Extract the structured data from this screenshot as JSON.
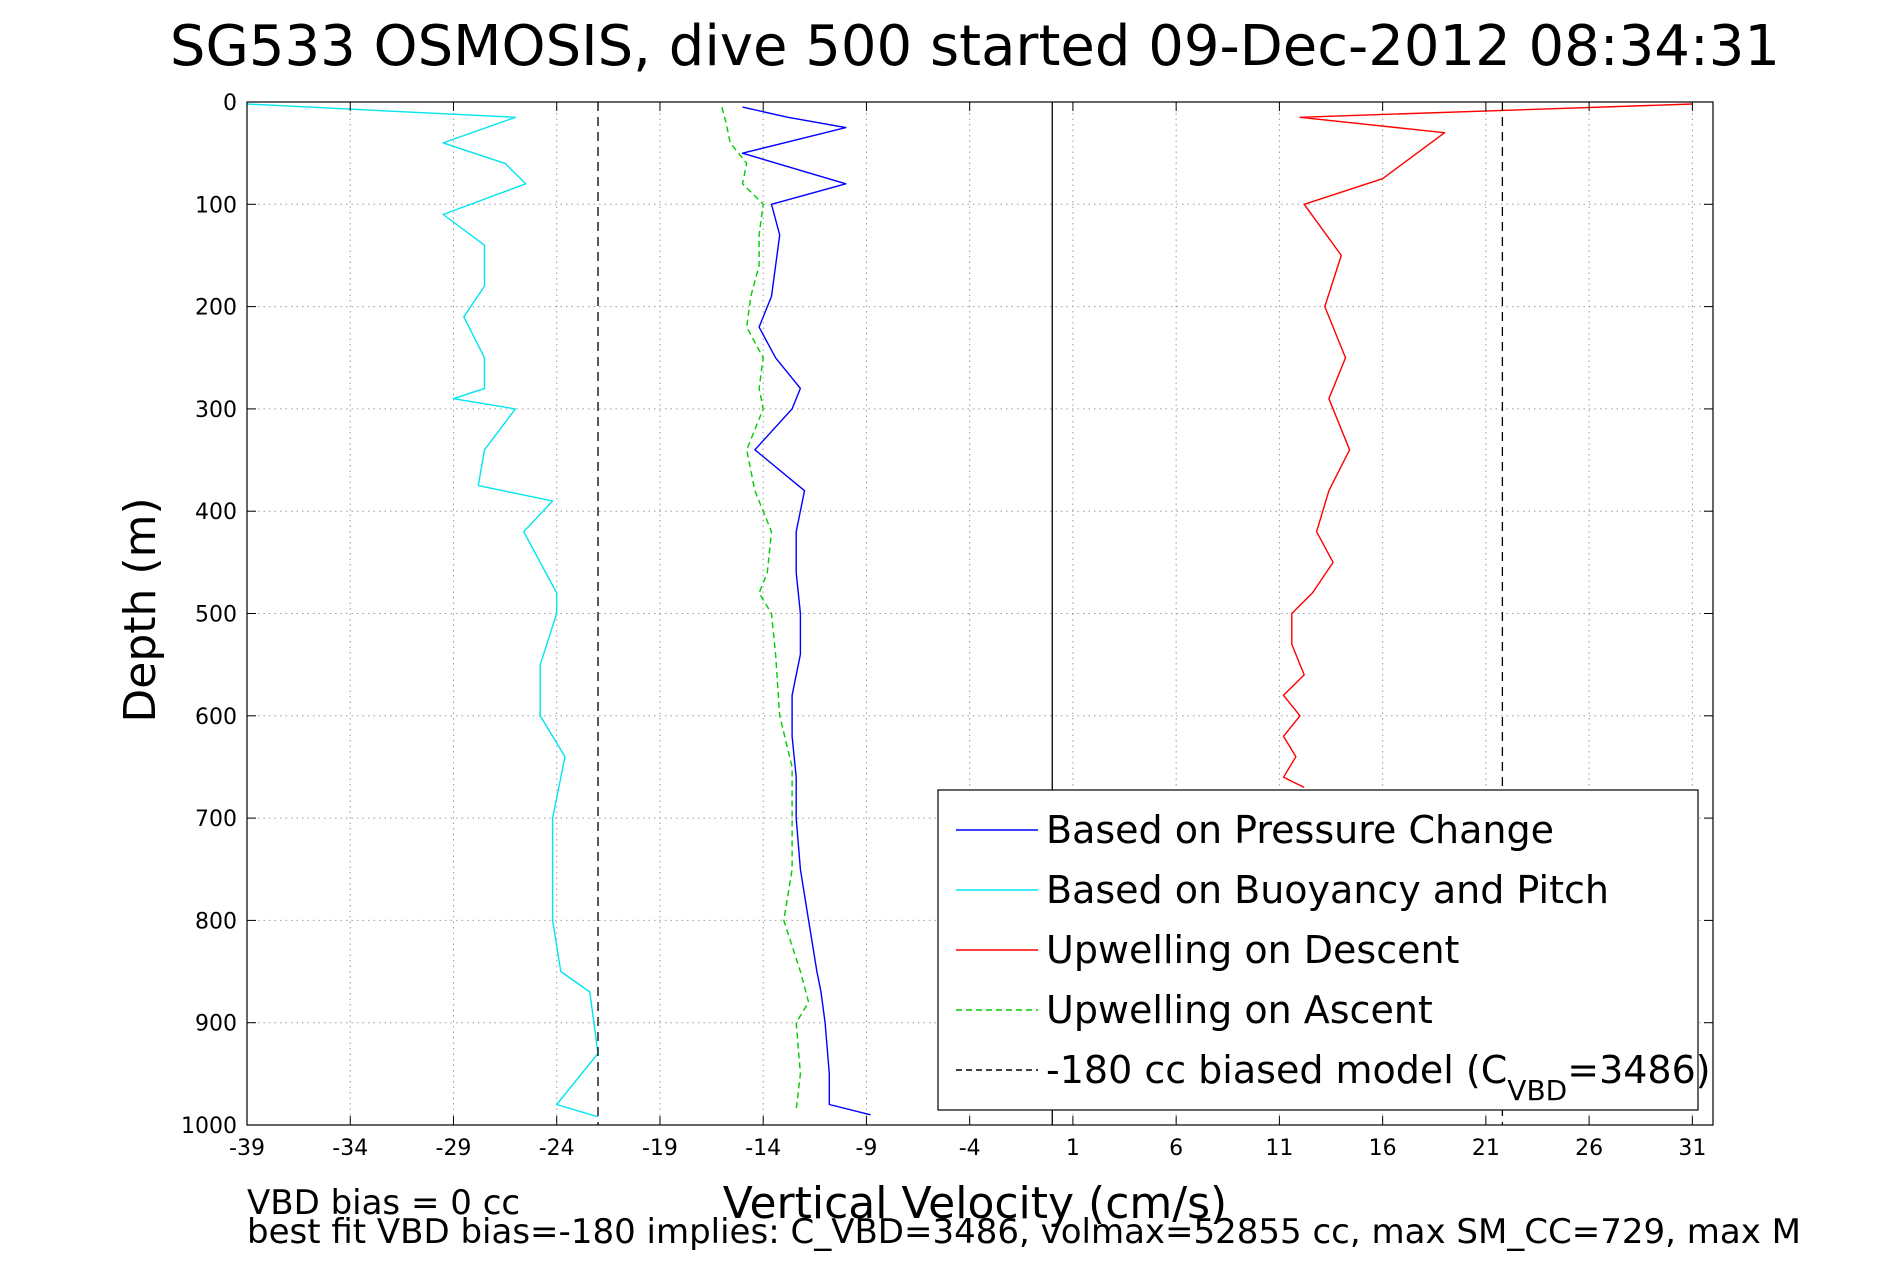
{
  "chart_data": {
    "type": "line",
    "title": "SG533 OSMOSIS, dive 500 started 09-Dec-2012 08:34:31",
    "xlabel": "Vertical Velocity (cm/s)",
    "ylabel": "Depth (m)",
    "xlim": [
      -39,
      32
    ],
    "ylim": [
      0,
      1000
    ],
    "y_reversed": true,
    "grid": true,
    "x_ticks": [
      -39,
      -34,
      -29,
      -24,
      -19,
      -14,
      -9,
      -4,
      1,
      6,
      11,
      16,
      21,
      26,
      31
    ],
    "y_ticks": [
      0,
      100,
      200,
      300,
      400,
      500,
      600,
      700,
      800,
      900,
      1000
    ],
    "legend_position": "bottom-right",
    "series": [
      {
        "name": "Based on Pressure Change",
        "color": "#0000ff",
        "style": "solid",
        "x": [
          -15,
          -12.8,
          -10,
          -15,
          -10,
          -13.6,
          -13.2,
          -13.4,
          -13.6,
          -14.2,
          -13.4,
          -12.2,
          -12.6,
          -14.4,
          -12,
          -12.4,
          -12.4,
          -12.2,
          -12.2,
          -12.6,
          -12.6,
          -12.4,
          -12.4,
          -12.2,
          -11.8,
          -11.4,
          -11.2,
          -11,
          -10.8,
          -10.8,
          -8.8
        ],
        "y": [
          5,
          15,
          25,
          50,
          80,
          100,
          130,
          160,
          190,
          220,
          250,
          280,
          300,
          340,
          380,
          420,
          460,
          500,
          540,
          580,
          620,
          660,
          700,
          750,
          800,
          850,
          870,
          900,
          950,
          980,
          990
        ]
      },
      {
        "name": "Based on Buoyancy and Pitch",
        "color": "#00e5ee",
        "style": "solid",
        "x": [
          -39,
          -26,
          -29.5,
          -26.5,
          -25.5,
          -29.5,
          -27.5,
          -27.5,
          -28.5,
          -27.5,
          -27.5,
          -29,
          -26,
          -27.5,
          -27.8,
          -24.2,
          -25.6,
          -24,
          -24,
          -24.8,
          -24.8,
          -23.6,
          -24.2,
          -24.2,
          -24.2,
          -23.8,
          -22.4,
          -22.2,
          -22,
          -24,
          -22
        ],
        "y": [
          2,
          15,
          40,
          60,
          80,
          110,
          140,
          180,
          210,
          250,
          280,
          290,
          300,
          340,
          375,
          390,
          420,
          480,
          500,
          550,
          600,
          640,
          700,
          750,
          800,
          850,
          870,
          900,
          930,
          980,
          992
        ]
      },
      {
        "name": "Upwelling on Descent",
        "color": "#ff0000",
        "style": "solid",
        "x": [
          31,
          12,
          19,
          16,
          12.2,
          14,
          13.2,
          14.2,
          13.4,
          14.4,
          13.4,
          12.8,
          13.6,
          12.6,
          11.6,
          11.6,
          12.2,
          11.2,
          12,
          11.2,
          11.8,
          11.2,
          12.2
        ],
        "y": [
          2,
          15,
          30,
          75,
          100,
          150,
          200,
          250,
          290,
          340,
          380,
          420,
          450,
          480,
          500,
          530,
          560,
          580,
          600,
          620,
          640,
          660,
          670
        ]
      },
      {
        "name": "Upwelling on Ascent",
        "color": "#00cc00",
        "style": "dashed",
        "x": [
          -16,
          -15.8,
          -15.6,
          -14.8,
          -15,
          -14,
          -14.2,
          -14.2,
          -14.6,
          -14.8,
          -14,
          -14.2,
          -14,
          -14.8,
          -14.4,
          -13.6,
          -13.8,
          -14.2,
          -13.6,
          -13.4,
          -13.2,
          -12.6,
          -12.6,
          -12.6,
          -13,
          -12.2,
          -11.8,
          -12.4,
          -12.2,
          -12.4
        ],
        "y": [
          5,
          20,
          40,
          60,
          80,
          100,
          130,
          160,
          190,
          220,
          250,
          280,
          300,
          340,
          380,
          420,
          460,
          480,
          500,
          540,
          600,
          650,
          700,
          750,
          800,
          850,
          880,
          900,
          950,
          985
        ]
      },
      {
        "name": "-180 cc biased model (C",
        "name_sub": "VBD",
        "name_suffix": "=3486)",
        "color": "#000000",
        "style": "dashed",
        "vertical_lines_x": [
          -22,
          21.8
        ]
      }
    ],
    "reference_lines": [
      {
        "x": 0,
        "color": "#000000",
        "style": "solid"
      }
    ],
    "annotations": [
      "VBD bias = 0 cc",
      "best fit VBD bias=-180 implies: C_VBD=3486, volmax=52855 cc, max SM_CC=729, max M"
    ]
  }
}
